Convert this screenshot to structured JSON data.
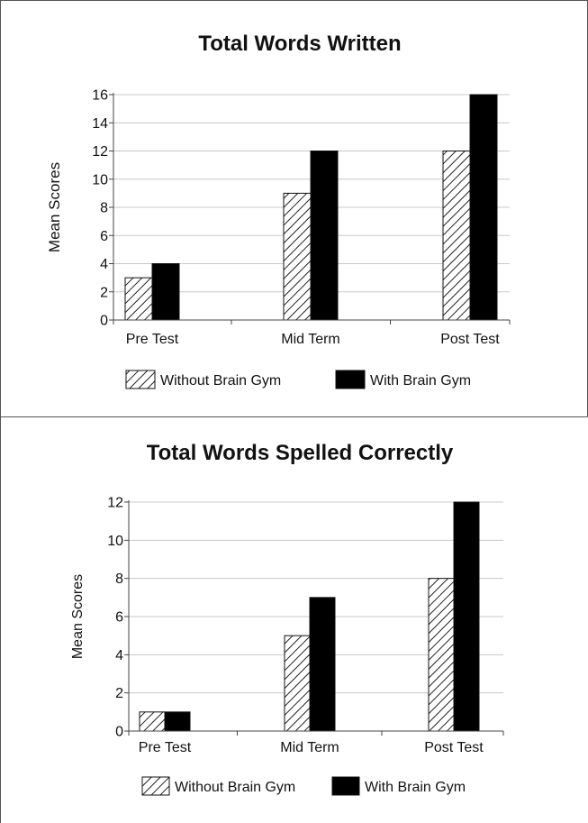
{
  "chart_data": [
    {
      "type": "bar",
      "title": "Total Words Written",
      "xlabel": "",
      "ylabel": "Mean Scores",
      "categories": [
        "Pre Test",
        "Mid Term",
        "Post Test"
      ],
      "ylim": [
        0,
        16
      ],
      "yticks": [
        0,
        2,
        4,
        6,
        8,
        10,
        12,
        14,
        16
      ],
      "grid": true,
      "legend_position": "bottom",
      "series": [
        {
          "name": "Without Brain Gym",
          "fill": "hatched",
          "values": [
            3,
            9,
            12
          ]
        },
        {
          "name": "With Brain Gym",
          "fill": "solid",
          "color": "#000000",
          "values": [
            4,
            12,
            16
          ]
        }
      ]
    },
    {
      "type": "bar",
      "title": "Total Words Spelled Correctly",
      "xlabel": "",
      "ylabel": "Mean Scores",
      "categories": [
        "Pre Test",
        "Mid Term",
        "Post Test"
      ],
      "ylim": [
        0,
        12
      ],
      "yticks": [
        0,
        2,
        4,
        6,
        8,
        10,
        12
      ],
      "grid": true,
      "legend_position": "bottom",
      "series": [
        {
          "name": "Without Brain Gym",
          "fill": "hatched",
          "values": [
            1,
            5,
            8
          ]
        },
        {
          "name": "With Brain Gym",
          "fill": "solid",
          "color": "#000000",
          "values": [
            1,
            7,
            12
          ]
        }
      ]
    }
  ]
}
